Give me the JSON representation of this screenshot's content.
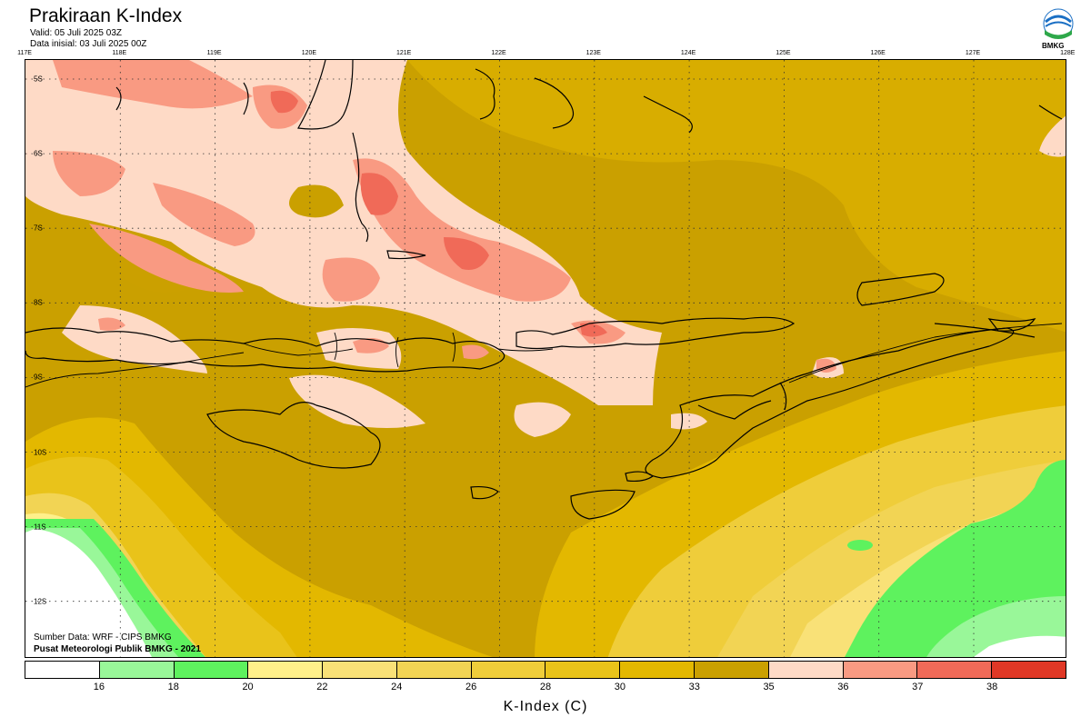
{
  "header": {
    "title": "Prakiraan K-Index",
    "valid": "Valid: 05 Juli 2025 03Z",
    "init": "Data inisial: 03 Juli 2025 00Z"
  },
  "logo": {
    "text": "BMKG"
  },
  "map": {
    "lon_labels": [
      "117E",
      "118E",
      "119E",
      "120E",
      "121E",
      "122E",
      "123E",
      "124E",
      "125E",
      "126E",
      "127E",
      "128E"
    ],
    "lat_labels": [
      "5S",
      "6S",
      "7S",
      "8S",
      "9S",
      "10S",
      "11S",
      "12S"
    ],
    "source_line": "Sumber Data: WRF - CIPS BMKG",
    "credit_line": "Pusat Meteorologi Publik BMKG - 2021"
  },
  "legend": {
    "colors": [
      "#ffffff",
      "#99f799",
      "#5ef25e",
      "#fff08a",
      "#f9e177",
      "#f2d454",
      "#efcd3a",
      "#e9c31a",
      "#e3b800",
      "#caa000",
      "#fedac6",
      "#f99a82",
      "#f06a58",
      "#e03826"
    ],
    "ticks": [
      "16",
      "18",
      "20",
      "22",
      "24",
      "26",
      "28",
      "30",
      "33",
      "35",
      "36",
      "37",
      "38"
    ],
    "title": "K-Index (C)"
  }
}
